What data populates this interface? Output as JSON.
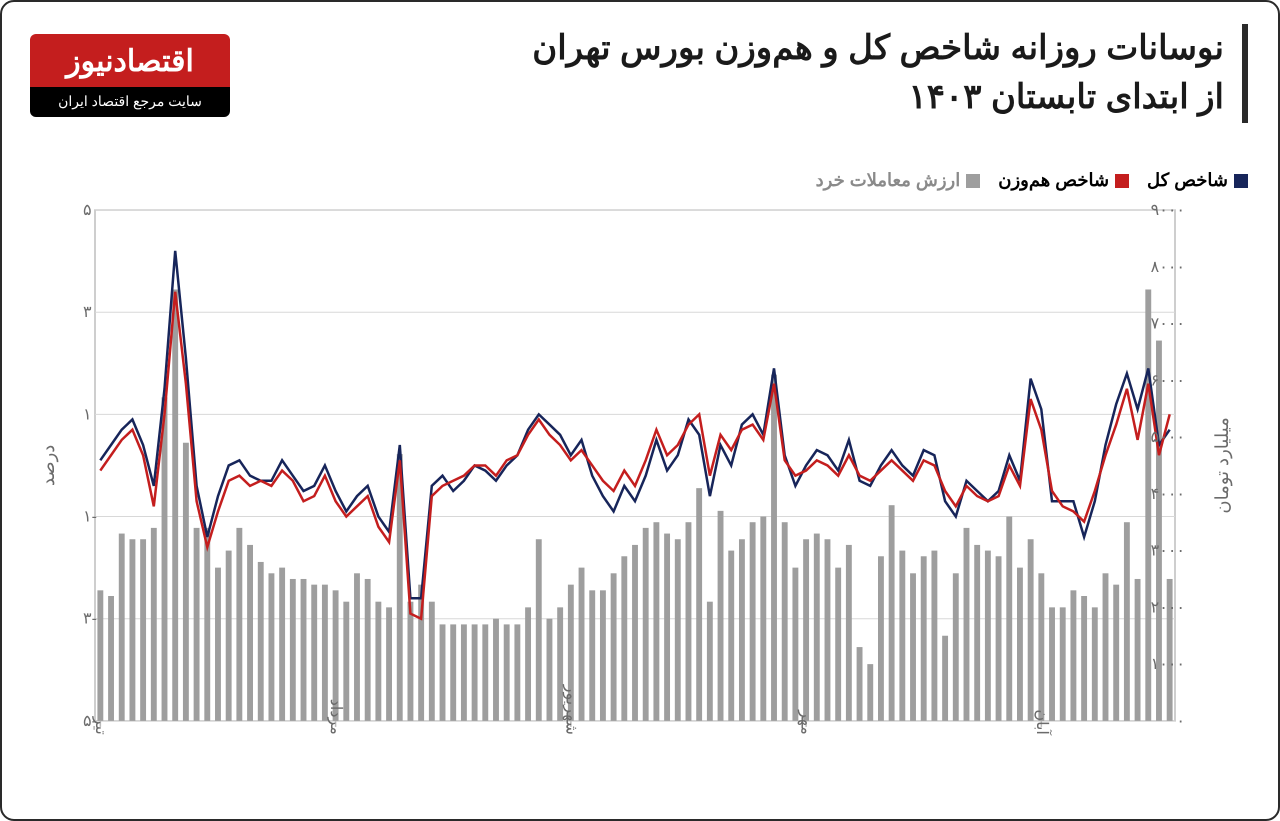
{
  "title_line1": "نوسانات روزانه شاخص کل و هم‌وزن بورس تهران",
  "title_line2": "از ابتدای تابستان ۱۴۰۳",
  "logo": {
    "top": "اقتصادنیوز",
    "bottom": "سایت مرجع اقتصاد ایران"
  },
  "legend": {
    "total": {
      "label": "شاخص کل",
      "color": "#17255a"
    },
    "equal": {
      "label": "شاخص هم‌وزن",
      "color": "#c41e1e"
    },
    "volume": {
      "label": "ارزش معاملات خرد",
      "color": "#9e9e9e"
    }
  },
  "chart": {
    "type": "combo-bar-line",
    "background_color": "#ffffff",
    "grid_color": "#d8d8d8",
    "bar_color": "#9e9e9e",
    "line_colors": {
      "total": "#17255a",
      "equal": "#c41e1e"
    },
    "line_width": 2.5,
    "bar_width_ratio": 0.55,
    "left_axis": {
      "label": "درصد",
      "min": -5,
      "max": 5,
      "step": 2,
      "ticks": [
        "۵",
        "۳",
        "۱",
        "-۱",
        "-۳",
        "-۵"
      ],
      "fontsize": 16
    },
    "right_axis": {
      "label": "میلیارد تومان",
      "min": 0,
      "max": 9000,
      "step": 1000,
      "ticks": [
        "۹۰۰۰",
        "۸۰۰۰",
        "۷۰۰۰",
        "۶۰۰۰",
        "۵۰۰۰",
        "۴۰۰۰",
        "۳۰۰۰",
        "۲۰۰۰",
        "۱۰۰۰",
        "۰"
      ],
      "fontsize": 16
    },
    "x_ticks": [
      {
        "pos": 0,
        "label": "تیر"
      },
      {
        "pos": 22,
        "label": "مرداد"
      },
      {
        "pos": 44,
        "label": "شهریور"
      },
      {
        "pos": 66,
        "label": "مهر"
      },
      {
        "pos": 88,
        "label": "آبان"
      }
    ],
    "volume": [
      2300,
      2200,
      3300,
      3200,
      3200,
      3400,
      5700,
      7600,
      4900,
      3400,
      3400,
      2700,
      3000,
      3400,
      3100,
      2800,
      2600,
      2700,
      2500,
      2500,
      2400,
      2400,
      2300,
      2100,
      2600,
      2500,
      2100,
      2000,
      4700,
      2100,
      2400,
      2100,
      1700,
      1700,
      1700,
      1700,
      1700,
      1800,
      1700,
      1700,
      2000,
      3200,
      1800,
      2000,
      2400,
      2700,
      2300,
      2300,
      2600,
      2900,
      3100,
      3400,
      3500,
      3300,
      3200,
      3500,
      4100,
      2100,
      3700,
      3000,
      3200,
      3500,
      3600,
      6100,
      3500,
      2700,
      3200,
      3300,
      3200,
      2700,
      3100,
      1300,
      1000,
      2900,
      3800,
      3000,
      2600,
      2900,
      3000,
      1500,
      2600,
      3400,
      3100,
      3000,
      2900,
      3600,
      2700,
      3200,
      2600,
      2000,
      2000,
      2300,
      2200,
      2000,
      2600,
      2400,
      3500,
      2500,
      7600,
      6700,
      2500
    ],
    "total_index": [
      0.1,
      0.4,
      0.7,
      0.9,
      0.4,
      -0.4,
      1.5,
      4.2,
      2.1,
      -0.4,
      -1.4,
      -0.6,
      0.0,
      0.1,
      -0.2,
      -0.3,
      -0.3,
      0.1,
      -0.2,
      -0.5,
      -0.4,
      0.0,
      -0.5,
      -0.9,
      -0.6,
      -0.4,
      -1.0,
      -1.3,
      0.4,
      -2.6,
      -2.6,
      -0.4,
      -0.2,
      -0.5,
      -0.3,
      0.0,
      -0.1,
      -0.3,
      0.0,
      0.2,
      0.7,
      1.0,
      0.8,
      0.6,
      0.2,
      0.5,
      -0.2,
      -0.6,
      -0.9,
      -0.4,
      -0.7,
      -0.2,
      0.5,
      -0.1,
      0.2,
      0.9,
      0.6,
      -0.6,
      0.4,
      0.0,
      0.8,
      1.0,
      0.6,
      1.9,
      0.2,
      -0.4,
      0.0,
      0.3,
      0.2,
      -0.1,
      0.5,
      -0.3,
      -0.4,
      0.0,
      0.3,
      0.0,
      -0.2,
      0.3,
      0.2,
      -0.7,
      -1.0,
      -0.3,
      -0.5,
      -0.7,
      -0.5,
      0.2,
      -0.3,
      1.7,
      1.1,
      -0.7,
      -0.7,
      -0.7,
      -1.4,
      -0.7,
      0.4,
      1.2,
      1.8,
      1.1,
      1.9,
      0.4,
      0.7
    ],
    "equal_index": [
      -0.1,
      0.2,
      0.5,
      0.7,
      0.2,
      -0.8,
      1.0,
      3.4,
      1.6,
      -0.7,
      -1.6,
      -0.9,
      -0.3,
      -0.2,
      -0.4,
      -0.3,
      -0.4,
      -0.1,
      -0.3,
      -0.7,
      -0.6,
      -0.2,
      -0.7,
      -1.0,
      -0.8,
      -0.6,
      -1.2,
      -1.5,
      0.1,
      -2.9,
      -3.0,
      -0.6,
      -0.4,
      -0.3,
      -0.2,
      0.0,
      0.0,
      -0.2,
      0.1,
      0.2,
      0.6,
      0.9,
      0.6,
      0.4,
      0.1,
      0.3,
      0.0,
      -0.3,
      -0.5,
      -0.1,
      -0.4,
      0.1,
      0.7,
      0.2,
      0.4,
      0.8,
      1.0,
      -0.2,
      0.6,
      0.3,
      0.7,
      0.8,
      0.5,
      1.6,
      0.1,
      -0.2,
      -0.1,
      0.1,
      0.0,
      -0.2,
      0.2,
      -0.2,
      -0.3,
      -0.1,
      0.1,
      -0.1,
      -0.3,
      0.1,
      0.0,
      -0.5,
      -0.8,
      -0.4,
      -0.6,
      -0.7,
      -0.6,
      0.0,
      -0.4,
      1.3,
      0.7,
      -0.5,
      -0.8,
      -0.9,
      -1.1,
      -0.5,
      0.2,
      0.8,
      1.5,
      0.5,
      1.6,
      0.2,
      1.0
    ]
  }
}
